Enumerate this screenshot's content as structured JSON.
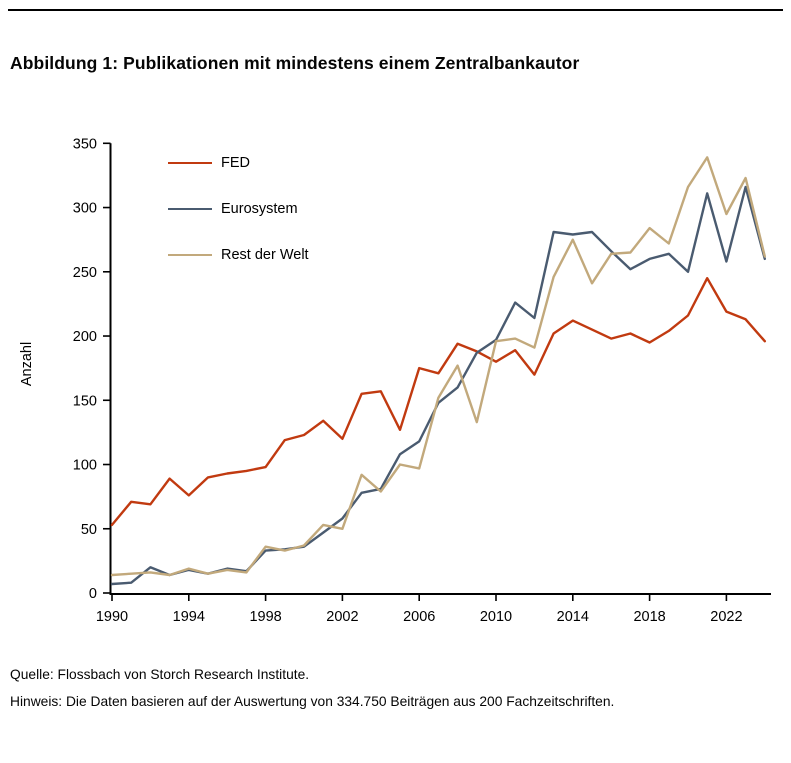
{
  "page": {
    "footer": {
      "source": "Quelle: Flossbach von Storch Research Institute.",
      "note": "Hinweis: Die Daten basieren auf der Auswertung von 334.750 Beiträgen aus 200 Fachzeitschriften."
    }
  },
  "chart_data": {
    "type": "line",
    "title": "Abbildung 1: Publikationen mit mindestens einem Zentralbankautor",
    "xlabel": "",
    "ylabel": "Anzahl",
    "xlim": [
      1990,
      2024
    ],
    "ylim": [
      0,
      350
    ],
    "grid": false,
    "legend_position": "top-left-inside",
    "x": [
      1990,
      1991,
      1992,
      1993,
      1994,
      1995,
      1996,
      1997,
      1998,
      1999,
      2000,
      2001,
      2002,
      2003,
      2004,
      2005,
      2006,
      2007,
      2008,
      2009,
      2010,
      2011,
      2012,
      2013,
      2014,
      2015,
      2016,
      2017,
      2018,
      2019,
      2020,
      2021,
      2022,
      2023,
      2024
    ],
    "x_tick_labels": [
      "1990",
      "1994",
      "1998",
      "2002",
      "2006",
      "2010",
      "2014",
      "2018",
      "2022"
    ],
    "x_tick_years": [
      1990,
      1994,
      1998,
      2002,
      2006,
      2010,
      2014,
      2018,
      2022
    ],
    "y_ticks": [
      0,
      50,
      100,
      150,
      200,
      250,
      300,
      350
    ],
    "series": [
      {
        "name": "FED",
        "color": "#C13A10",
        "values": [
          53,
          71,
          69,
          89,
          76,
          90,
          93,
          95,
          98,
          119,
          123,
          134,
          120,
          155,
          157,
          127,
          175,
          171,
          194,
          188,
          180,
          189,
          170,
          202,
          212,
          205,
          198,
          202,
          195,
          204,
          216,
          245,
          219,
          213,
          196
        ]
      },
      {
        "name": "Eurosystem",
        "color": "#4A5B70",
        "values": [
          7,
          8,
          20,
          14,
          18,
          15,
          19,
          17,
          33,
          34,
          36,
          47,
          58,
          78,
          81,
          108,
          118,
          148,
          160,
          187,
          197,
          226,
          214,
          281,
          279,
          281,
          266,
          252,
          260,
          264,
          250,
          311,
          258,
          316,
          260
        ]
      },
      {
        "name": "Rest der Welt",
        "color": "#C2A97C",
        "values": [
          14,
          15,
          16,
          14,
          19,
          15,
          18,
          16,
          36,
          33,
          37,
          53,
          50,
          92,
          79,
          100,
          97,
          152,
          177,
          133,
          196,
          198,
          191,
          246,
          275,
          241,
          264,
          265,
          284,
          272,
          316,
          339,
          295,
          323,
          262
        ]
      }
    ]
  }
}
